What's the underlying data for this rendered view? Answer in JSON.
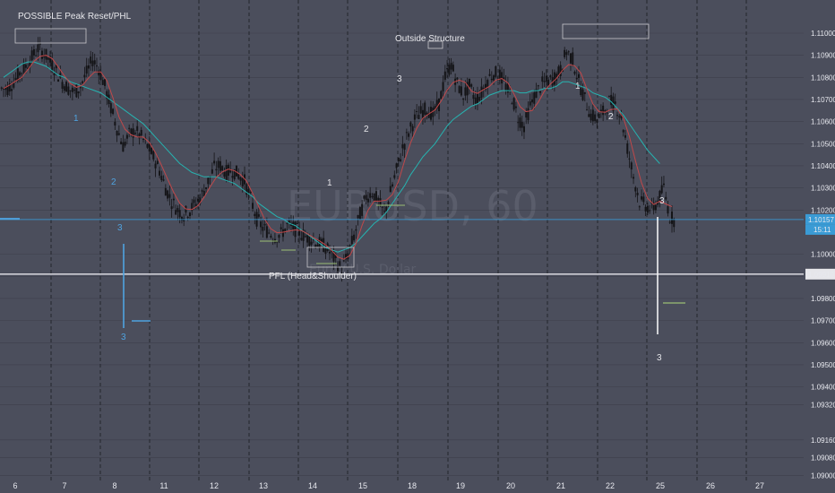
{
  "chart_data": {
    "type": "candlestick",
    "symbol_watermark": "EURUSD, 60",
    "watermark_subtitle": "Euro / U.S. Dollar",
    "y_axis": {
      "ylim": [
        1.0892,
        1.1115
      ],
      "ticks": [
        1.11,
        1.109,
        1.108,
        1.107,
        1.106,
        1.105,
        1.104,
        1.103,
        1.102,
        1.1,
        1.099,
        1.098,
        1.097,
        1.096,
        1.095,
        1.094,
        1.0932,
        1.0916,
        1.0908,
        1.09
      ],
      "tick_labels": [
        "1.11000",
        "1.10900",
        "1.10800",
        "1.10700",
        "1.10600",
        "1.10500",
        "1.10400",
        "1.10300",
        "1.10200",
        "1.10000",
        "1.09900",
        "1.09800",
        "1.09700",
        "1.09600",
        "1.09500",
        "1.09400",
        "1.09320",
        "1.09160",
        "1.09080",
        "1.09000"
      ]
    },
    "x_axis": {
      "tick_labels": [
        "6",
        "7",
        "8",
        "11",
        "12",
        "13",
        "14",
        "15",
        "18",
        "19",
        "20",
        "21",
        "22",
        "25",
        "26",
        "27"
      ]
    },
    "price_close": [
      1.1075,
      1.1078,
      1.1082,
      1.1085,
      1.1089,
      1.1093,
      1.1091,
      1.1087,
      1.1083,
      1.1078,
      1.1075,
      1.1073,
      1.1076,
      1.1082,
      1.1088,
      1.1084,
      1.1076,
      1.1066,
      1.1057,
      1.1049,
      1.1054,
      1.1056,
      1.1053,
      1.1049,
      1.1044,
      1.1038,
      1.103,
      1.1024,
      1.102,
      1.1018,
      1.102,
      1.1023,
      1.1027,
      1.1033,
      1.1039,
      1.104,
      1.1037,
      1.1038,
      1.1036,
      1.1033,
      1.1025,
      1.1016,
      1.1012,
      1.101,
      1.1008,
      1.1009,
      1.1013,
      1.1012,
      1.101,
      1.1008,
      1.1007,
      1.1005,
      1.1004,
      1.1001,
      1.0997,
      1.0993,
      1.1,
      1.1008,
      1.1018,
      1.1026,
      1.1028,
      1.1024,
      1.1018,
      1.1028,
      1.1038,
      1.1048,
      1.1055,
      1.1061,
      1.1064,
      1.1066,
      1.1063,
      1.1068,
      1.108,
      1.1086,
      1.1077,
      1.1072,
      1.1076,
      1.107,
      1.1073,
      1.1079,
      1.1082,
      1.1081,
      1.1076,
      1.1071,
      1.1062,
      1.1058,
      1.1067,
      1.1073,
      1.1077,
      1.1078,
      1.108,
      1.1083,
      1.1092,
      1.1088,
      1.1078,
      1.107,
      1.1063,
      1.1061,
      1.1064,
      1.1069,
      1.1068,
      1.1062,
      1.1048,
      1.1035,
      1.1024,
      1.1022,
      1.102,
      1.1024,
      1.103,
      1.1017,
      1.1015
    ],
    "sma_teal": [
      1.108,
      1.1082,
      1.1084,
      1.1086,
      1.1087,
      1.1087,
      1.1086,
      1.1085,
      1.1083,
      1.1081,
      1.108,
      1.1078,
      1.1077,
      1.1076,
      1.1075,
      1.1074,
      1.1073,
      1.1071,
      1.1069,
      1.1067,
      1.1065,
      1.1063,
      1.1061,
      1.1059,
      1.1056,
      1.1053,
      1.105,
      1.1047,
      1.1044,
      1.1041,
      1.1039,
      1.1037,
      1.1036,
      1.1035,
      1.1035,
      1.1035,
      1.1034,
      1.1033,
      1.1032,
      1.103,
      1.1028,
      1.1026,
      1.1023,
      1.1021,
      1.1019,
      1.1017,
      1.1016,
      1.1014,
      1.1013,
      1.1011,
      1.1009,
      1.1007,
      1.1005,
      1.1003,
      1.1002,
      1.1001,
      1.1002,
      1.1003,
      1.1005,
      1.1008,
      1.1011,
      1.1014,
      1.1016,
      1.1019,
      1.1023,
      1.1027,
      1.1031,
      1.1036,
      1.104,
      1.1044,
      1.1047,
      1.105,
      1.1054,
      1.1058,
      1.1061,
      1.1063,
      1.1065,
      1.1067,
      1.1068,
      1.107,
      1.1072,
      1.1073,
      1.1074,
      1.1074,
      1.1074,
      1.1073,
      1.1073,
      1.1074,
      1.1074,
      1.1075,
      1.1075,
      1.1076,
      1.1078,
      1.1078,
      1.1077,
      1.1076,
      1.1075,
      1.1073,
      1.1072,
      1.1071,
      1.1069,
      1.1066,
      1.1063,
      1.1059,
      1.1055,
      1.1051,
      1.1047,
      1.1044,
      1.1041
    ],
    "horizontal_levels": [
      {
        "value": 1.10157,
        "label": "1.10157",
        "color": "#3a9bd5"
      },
      {
        "value": 1.0991,
        "label": "1.09910",
        "color": "#e6e6ea"
      }
    ],
    "annotations": [
      {
        "text": "POSSIBLE Peak Reset/PHL",
        "color": "#e6e6ea"
      },
      {
        "text": "Outside Structure",
        "color": "#e6e6ea"
      },
      {
        "text": "PFL (Head&Shoulder)",
        "color": "#e6e6ea"
      },
      {
        "text": "1",
        "color": "#4fa3e0"
      },
      {
        "text": "2",
        "color": "#4fa3e0"
      },
      {
        "text": "3",
        "color": "#4fa3e0"
      },
      {
        "text": "3",
        "color": "#4fa3e0"
      },
      {
        "text": "1",
        "color": "#e6e6ea"
      },
      {
        "text": "2",
        "color": "#e6e6ea"
      },
      {
        "text": "3",
        "color": "#e6e6ea"
      },
      {
        "text": "1",
        "color": "#e6e6ea"
      },
      {
        "text": "2",
        "color": "#e6e6ea"
      },
      {
        "text": "3",
        "color": "#e6e6ea"
      },
      {
        "text": "3",
        "color": "#e6e6ea"
      }
    ],
    "current_time_badge": "15:11",
    "colors": {
      "background": "#4b4e5c",
      "candles": "#141417",
      "sma_red": "#c0484a",
      "sma_teal": "#26b3b0",
      "grid": "#2c2e37"
    }
  }
}
